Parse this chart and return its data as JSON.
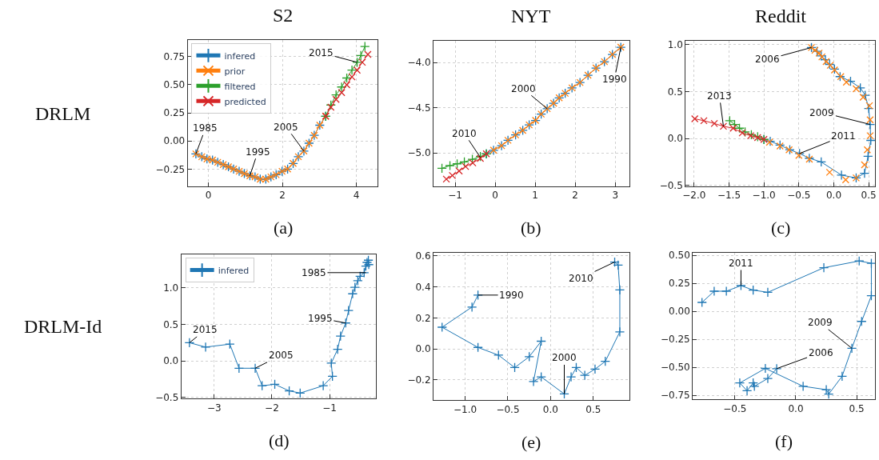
{
  "chart_data": [
    {
      "type": "line",
      "title": "S2",
      "xlabel": "(a)",
      "grid": true,
      "legend": "top left",
      "line_style": "solid",
      "xlim": [
        -0.56,
        4.58
      ],
      "ylim": [
        -0.404,
        0.897
      ],
      "xticks": [
        0,
        2,
        4
      ],
      "yticks": [
        {
          "value": -0.25,
          "label": "−0.25"
        },
        {
          "value": 0,
          "label": "0.00"
        },
        0.25,
        {
          "value": 0.5,
          "label": "0.50"
        },
        0.75
      ],
      "annotations": [
        "DRLM",
        {
          "text": "1985",
          "x": -0.34,
          "y": -0.115
        },
        {
          "text": "1995",
          "x": 1.12,
          "y": -0.31
        },
        {
          "text": "2005",
          "x": 2.58,
          "y": -0.09
        },
        {
          "text": "2015",
          "x": 4.02,
          "y": 0.7
        }
      ],
      "series": [
        {
          "name": "infered",
          "color": "#1f77b4",
          "marker": "cross",
          "x": [
            -0.34,
            -0.18,
            -0.04,
            0.11,
            0.25,
            0.4,
            0.54,
            0.68,
            0.83,
            0.97,
            1.12,
            1.26,
            1.4,
            1.55,
            1.69,
            1.83,
            1.99,
            2.14,
            2.29,
            2.43,
            2.58,
            2.72,
            2.86,
            3.01,
            3.17
          ],
          "values": [
            -0.115,
            -0.14,
            -0.16,
            -0.17,
            -0.19,
            -0.21,
            -0.23,
            -0.25,
            -0.27,
            -0.29,
            -0.31,
            -0.32,
            -0.34,
            -0.34,
            -0.32,
            -0.3,
            -0.27,
            -0.25,
            -0.2,
            -0.14,
            -0.09,
            -0.02,
            0.05,
            0.14,
            0.22
          ]
        },
        {
          "name": "prior",
          "color": "#ff7f0e",
          "marker": "x",
          "x": [
            -0.34,
            -0.18,
            -0.04,
            0.11,
            0.25,
            0.4,
            0.54,
            0.68,
            0.83,
            0.97,
            1.12,
            1.26,
            1.4,
            1.55,
            1.69,
            1.83,
            1.99,
            2.14,
            2.29,
            2.43,
            2.58,
            2.72,
            2.86,
            3.01,
            3.17
          ],
          "values": [
            -0.115,
            -0.14,
            -0.16,
            -0.17,
            -0.19,
            -0.21,
            -0.23,
            -0.25,
            -0.27,
            -0.29,
            -0.31,
            -0.32,
            -0.34,
            -0.34,
            -0.32,
            -0.3,
            -0.27,
            -0.25,
            -0.2,
            -0.14,
            -0.09,
            -0.02,
            0.05,
            0.14,
            0.22
          ]
        },
        {
          "name": "filtered",
          "color": "#2ca02c",
          "marker": "cross",
          "x": [
            3.17,
            3.31,
            3.45,
            3.6,
            3.74,
            3.88,
            4.02,
            4.12,
            4.23
          ],
          "values": [
            0.22,
            0.32,
            0.41,
            0.48,
            0.56,
            0.63,
            0.7,
            0.76,
            0.84
          ]
        },
        {
          "name": "predicted",
          "color": "#d62728",
          "marker": "x",
          "x": [
            3.17,
            3.31,
            3.45,
            3.6,
            3.74,
            3.88,
            4.02,
            4.16,
            4.31
          ],
          "values": [
            0.22,
            0.3,
            0.37,
            0.43,
            0.5,
            0.57,
            0.63,
            0.7,
            0.77
          ]
        }
      ]
    },
    {
      "type": "line",
      "title": "NYT",
      "xlabel": "(b)",
      "grid": true,
      "line_style": "solid",
      "xlim": [
        -1.54,
        3.35
      ],
      "ylim": [
        -5.37,
        -3.76
      ],
      "xticks": [
        {
          "value": -1,
          "label": "−1"
        },
        0,
        1,
        2,
        3
      ],
      "yticks": [
        {
          "value": -5.0,
          "label": "−5.0"
        },
        {
          "value": -4.5,
          "label": "−4.5"
        },
        {
          "value": -4.0,
          "label": "−4.0"
        }
      ],
      "annotations": [
        {
          "text": "1990",
          "x": 3.14,
          "y": -3.83
        },
        {
          "text": "2000",
          "x": 1.3,
          "y": -4.51
        },
        {
          "text": "2010",
          "x": -0.37,
          "y": -5.05
        }
      ],
      "series": [
        {
          "color": "#1f77b4",
          "marker": "cross",
          "x": [
            3.14,
            2.93,
            2.73,
            2.52,
            2.32,
            2.12,
            1.92,
            1.75,
            1.6,
            1.46,
            1.3,
            1.15,
            1.01,
            0.85,
            0.69,
            0.51,
            0.32,
            0.16,
            -0.04,
            -0.22
          ],
          "values": [
            -3.83,
            -3.91,
            -3.99,
            -4.06,
            -4.14,
            -4.22,
            -4.28,
            -4.34,
            -4.39,
            -4.45,
            -4.51,
            -4.57,
            -4.64,
            -4.69,
            -4.75,
            -4.8,
            -4.86,
            -4.92,
            -4.97,
            -5.01
          ]
        },
        {
          "color": "#ff7f0e",
          "marker": "x",
          "x": [
            3.14,
            2.93,
            2.73,
            2.52,
            2.32,
            2.12,
            1.92,
            1.75,
            1.6,
            1.46,
            1.3,
            1.15,
            1.01,
            0.85,
            0.69,
            0.51,
            0.32,
            0.16,
            -0.04
          ],
          "values": [
            -3.83,
            -3.91,
            -3.99,
            -4.06,
            -4.14,
            -4.22,
            -4.28,
            -4.34,
            -4.39,
            -4.45,
            -4.51,
            -4.57,
            -4.64,
            -4.69,
            -4.75,
            -4.8,
            -4.86,
            -4.92,
            -4.97
          ]
        },
        {
          "color": "#2ca02c",
          "marker": "cross",
          "x": [
            -0.22,
            -0.37,
            -0.57,
            -0.77,
            -0.95,
            -1.13,
            -1.33
          ],
          "values": [
            -5.01,
            -5.04,
            -5.07,
            -5.1,
            -5.12,
            -5.14,
            -5.17
          ]
        },
        {
          "color": "#d62728",
          "marker": "x",
          "x": [
            -0.22,
            -0.37,
            -0.56,
            -0.74,
            -0.9,
            -1.07,
            -1.22
          ],
          "values": [
            -5.01,
            -5.06,
            -5.11,
            -5.15,
            -5.2,
            -5.25,
            -5.29
          ]
        }
      ]
    },
    {
      "type": "line",
      "title": "Reddit",
      "xlabel": "(c)",
      "grid": true,
      "line_style": "solid",
      "xlim": [
        -2.12,
        0.59
      ],
      "ylim": [
        -0.51,
        1.04
      ],
      "xticks": [
        {
          "value": -2.0,
          "label": "−2.0"
        },
        {
          "value": -1.5,
          "label": "−1.5"
        },
        {
          "value": -1.0,
          "label": "−1.0"
        },
        {
          "value": -0.5,
          "label": "−0.5"
        },
        {
          "value": 0,
          "label": "0.0"
        },
        0.5
      ],
      "yticks": [
        {
          "value": -0.5,
          "label": "−0.5"
        },
        {
          "value": 0,
          "label": "0.0"
        },
        0.5,
        {
          "value": 1,
          "label": "1.0"
        }
      ],
      "annotations": [
        {
          "text": "2006",
          "x": -0.32,
          "y": 0.97
        },
        {
          "text": "2009",
          "x": 0.52,
          "y": 0.15
        },
        {
          "text": "2011",
          "x": -0.49,
          "y": -0.16
        },
        {
          "text": "2013",
          "x": -1.58,
          "y": 0.13
        }
      ],
      "series": [
        {
          "color": "#1f77b4",
          "marker": "cross",
          "x": [
            -0.32,
            -0.24,
            -0.18,
            -0.12,
            -0.06,
            0.01,
            0.09,
            0.24,
            0.38,
            0.45,
            0.5,
            0.52,
            0.53,
            0.49,
            0.44,
            0.32,
            0.11,
            -0.18,
            -0.35,
            -0.49,
            -0.63,
            -0.77,
            -0.91,
            -1.0
          ],
          "values": [
            0.97,
            0.93,
            0.88,
            0.84,
            0.79,
            0.74,
            0.66,
            0.61,
            0.54,
            0.46,
            0.32,
            0.15,
            -0.02,
            -0.19,
            -0.37,
            -0.42,
            -0.39,
            -0.25,
            -0.21,
            -0.16,
            -0.12,
            -0.07,
            -0.03,
            -0.01
          ]
        },
        {
          "type": "scatter",
          "color": "#ff7f0e",
          "marker": "x",
          "x": [
            -0.32,
            -0.27,
            -0.21,
            -0.17,
            -0.11,
            -0.05,
            0.01,
            0.1,
            0.18,
            0.32,
            0.42,
            0.51,
            0.52,
            0.52,
            0.48,
            0.44,
            0.32,
            0.17,
            -0.06,
            -0.35,
            -0.5,
            -0.64,
            -0.77,
            -0.92
          ],
          "values": [
            0.97,
            0.94,
            0.91,
            0.87,
            0.82,
            0.78,
            0.73,
            0.66,
            0.6,
            0.53,
            0.44,
            0.35,
            0.2,
            0.03,
            -0.12,
            -0.28,
            -0.42,
            -0.44,
            -0.36,
            -0.22,
            -0.18,
            -0.12,
            -0.08,
            -0.04
          ]
        },
        {
          "color": "#2ca02c",
          "marker": "cross",
          "x": [
            -1.0,
            -1.09,
            -1.18,
            -1.27,
            -1.35,
            -1.42,
            -1.49
          ],
          "values": [
            -0.01,
            0.02,
            0.04,
            0.07,
            0.11,
            0.15,
            0.19
          ]
        },
        {
          "color": "#d62728",
          "marker": "x",
          "x": [
            -1.0,
            -1.09,
            -1.19,
            -1.31,
            -1.44,
            -1.58,
            -1.71,
            -1.86,
            -1.99
          ],
          "values": [
            -0.01,
            0.01,
            0.03,
            0.06,
            0.11,
            0.13,
            0.16,
            0.19,
            0.21
          ]
        }
      ]
    },
    {
      "type": "line",
      "xlabel": "(d)",
      "grid": true,
      "legend": "top left",
      "line_style": "solid",
      "xlim": [
        -3.57,
        -0.19
      ],
      "ylim": [
        -0.516,
        1.455
      ],
      "xticks": [
        {
          "value": -3,
          "label": "−3"
        },
        {
          "value": -2,
          "label": "−2"
        },
        {
          "value": -1,
          "label": "−1"
        }
      ],
      "yticks": [
        {
          "value": -0.5,
          "label": "−0.5"
        },
        {
          "value": 0,
          "label": "0.0"
        },
        0.5,
        {
          "value": 1,
          "label": "1.0"
        }
      ],
      "annotations": [
        "DRLM-Id",
        {
          "text": "1985",
          "x": -0.37,
          "y": 1.21
        },
        {
          "text": "1995",
          "x": -0.72,
          "y": 0.52
        },
        {
          "text": "2005",
          "x": -2.29,
          "y": -0.1
        },
        {
          "text": "2015",
          "x": -3.43,
          "y": 0.25
        }
      ],
      "series": [
        {
          "name": "infered",
          "color": "#1f77b4",
          "marker": "cross",
          "x": [
            -0.327,
            -0.35,
            -0.32,
            -0.37,
            -0.4,
            -0.47,
            -0.51,
            -0.56,
            -0.6,
            -0.67,
            -0.72,
            -0.81,
            -0.86,
            -0.97,
            -0.95,
            -1.11,
            -1.51,
            -1.7,
            -1.95,
            -2.17,
            -2.29,
            -2.57,
            -2.73,
            -3.15,
            -3.43
          ],
          "values": [
            1.38,
            1.35,
            1.32,
            1.3,
            1.21,
            1.16,
            1.1,
            1.01,
            0.92,
            0.69,
            0.52,
            0.34,
            0.16,
            -0.03,
            -0.21,
            -0.34,
            -0.44,
            -0.41,
            -0.32,
            -0.34,
            -0.1,
            -0.1,
            0.23,
            0.19,
            0.25
          ]
        }
      ]
    },
    {
      "type": "line",
      "xlabel": "(e)",
      "grid": true,
      "line_style": "solid",
      "xlim": [
        -1.37,
        0.92
      ],
      "ylim": [
        -0.33,
        0.617
      ],
      "xticks": [
        {
          "value": -1.0,
          "label": "−1.0"
        },
        {
          "value": -0.5,
          "label": "−0.5"
        },
        {
          "value": 0,
          "label": "0.0"
        },
        0.5
      ],
      "yticks": [
        {
          "value": -0.2,
          "label": "−0.2"
        },
        {
          "value": 0,
          "label": "0.0"
        },
        0.2,
        0.4,
        0.6
      ],
      "annotations": [
        {
          "text": "1990",
          "x": -0.85,
          "y": 0.347
        },
        {
          "text": "2000",
          "x": 0.16,
          "y": -0.29
        },
        {
          "text": "2010",
          "x": 0.75,
          "y": 0.56
        }
      ],
      "series": [
        {
          "color": "#1f77b4",
          "marker": "cross",
          "x": [
            -0.85,
            -0.92,
            -1.27,
            -0.85,
            -0.61,
            -0.42,
            -0.25,
            -0.11,
            -0.2,
            -0.11,
            0.16,
            0.24,
            0.3,
            0.4,
            0.52,
            0.64,
            0.81,
            0.81,
            0.79,
            0.75
          ],
          "values": [
            0.347,
            0.27,
            0.14,
            0.01,
            -0.04,
            -0.12,
            -0.05,
            0.05,
            -0.21,
            -0.18,
            -0.29,
            -0.18,
            -0.12,
            -0.17,
            -0.13,
            -0.08,
            0.11,
            0.38,
            0.54,
            0.56
          ]
        }
      ]
    },
    {
      "type": "line",
      "xlabel": "(f)",
      "grid": true,
      "line_style": "solid",
      "xlim": [
        -0.845,
        0.65
      ],
      "ylim": [
        -0.787,
        0.52
      ],
      "xticks": [
        {
          "value": -0.5,
          "label": "−0.5"
        },
        {
          "value": 0,
          "label": "0.0"
        },
        0.5
      ],
      "yticks": [
        {
          "value": -0.75,
          "label": "−0.75"
        },
        {
          "value": -0.5,
          "label": "−0.50"
        },
        {
          "value": -0.25,
          "label": "−0.25"
        },
        {
          "value": 0,
          "label": "0.00"
        },
        0.25,
        {
          "value": 0.5,
          "label": "0.50"
        }
      ],
      "annotations": [
        {
          "text": "2006",
          "x": -0.157,
          "y": -0.512
        },
        {
          "text": "2009",
          "x": 0.46,
          "y": -0.33
        },
        {
          "text": "2011",
          "x": -0.45,
          "y": 0.23
        }
      ],
      "series": [
        {
          "color": "#1f77b4",
          "marker": "cross",
          "x": [
            -0.157,
            -0.23,
            -0.34,
            -0.35,
            -0.4,
            -0.46,
            -0.25,
            0.06,
            0.25,
            0.27,
            0.38,
            0.46,
            0.54,
            0.62,
            0.62,
            0.52,
            0.23,
            -0.23,
            -0.35,
            -0.45,
            -0.57,
            -0.67,
            -0.77
          ],
          "values": [
            -0.512,
            -0.6,
            -0.67,
            -0.64,
            -0.71,
            -0.64,
            -0.51,
            -0.67,
            -0.7,
            -0.74,
            -0.58,
            -0.33,
            -0.09,
            0.14,
            0.43,
            0.45,
            0.39,
            0.17,
            0.19,
            0.23,
            0.18,
            0.18,
            0.08
          ]
        }
      ]
    }
  ]
}
